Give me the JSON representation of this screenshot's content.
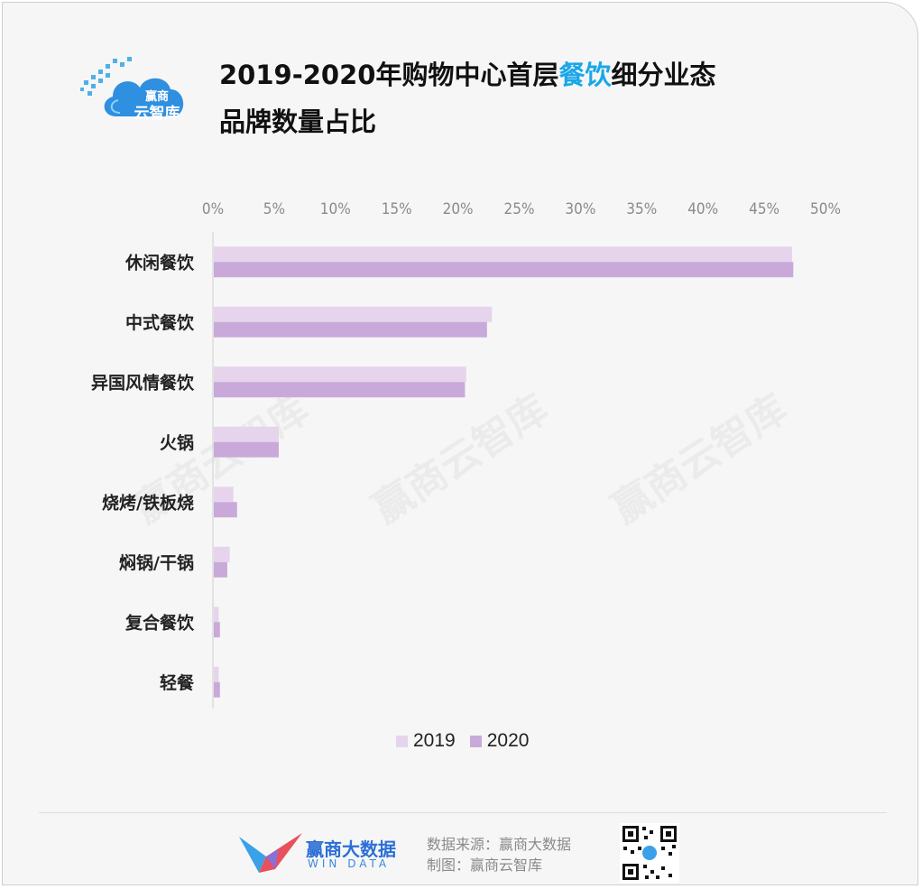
{
  "header": {
    "logo_small": "赢商",
    "logo_big": "云智库",
    "title_line1_pre": "2019-2020年购物中心首层",
    "title_line1_highlight": "餐饮",
    "title_line1_post": "细分业态",
    "title_line2": "品牌数量占比"
  },
  "colors": {
    "accent": "#1aa7e8",
    "series_2019": "#e6d4ec",
    "series_2020": "#c9a9d9"
  },
  "chart_data": {
    "type": "bar",
    "orientation": "horizontal",
    "title": "2019-2020年购物中心首层餐饮细分业态品牌数量占比",
    "categories": [
      "休闲餐饮",
      "中式餐饮",
      "异国风情餐饮",
      "火锅",
      "烧烤/铁板烧",
      "焖锅/干锅",
      "复合餐饮",
      "轻餐"
    ],
    "series": [
      {
        "name": "2019",
        "values": [
          47.2,
          22.7,
          20.6,
          5.3,
          1.6,
          1.3,
          0.4,
          0.4
        ]
      },
      {
        "name": "2020",
        "values": [
          47.3,
          22.3,
          20.5,
          5.3,
          1.9,
          1.1,
          0.5,
          0.5
        ]
      }
    ],
    "x_ticks": [
      "0%",
      "5%",
      "10%",
      "15%",
      "20%",
      "25%",
      "30%",
      "35%",
      "40%",
      "45%",
      "50%"
    ],
    "xlim": [
      0,
      50
    ],
    "legend_position": "bottom",
    "grid": false
  },
  "watermark": "赢商云智库",
  "footer": {
    "brand_name": "赢商大数据",
    "brand_sub": "WIN DATA",
    "source": "数据来源：赢商大数据",
    "made_by": "制图：赢商云智库"
  }
}
